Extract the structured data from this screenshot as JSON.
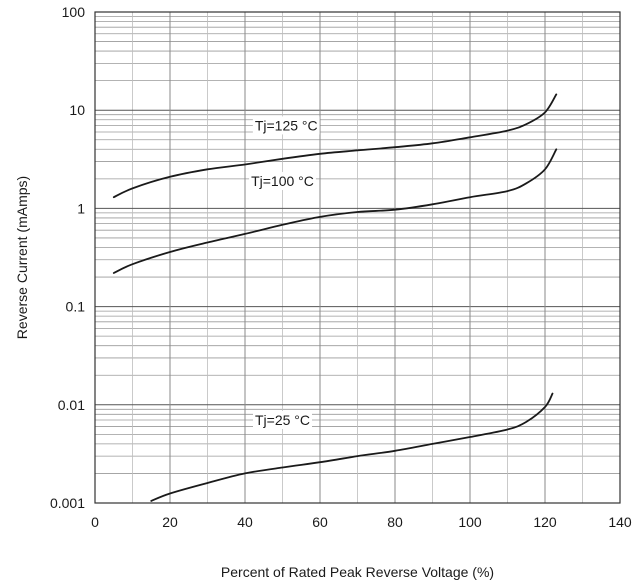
{
  "chart_data": {
    "type": "line",
    "title": "",
    "xlabel": "Percent of Rated Peak Reverse Voltage (%)",
    "ylabel": "Reverse Current (mAmps)",
    "xlim": [
      0,
      140
    ],
    "ylim": [
      0.001,
      100
    ],
    "y_scale": "log",
    "grid": true,
    "x_ticks": [
      "0",
      "20",
      "40",
      "60",
      "80",
      "100",
      "120",
      "140"
    ],
    "y_ticks": [
      "0.001",
      "0.01",
      "0.1",
      "1",
      "10",
      "100"
    ],
    "legend": "none",
    "series": [
      {
        "name": "Tj=125 °C",
        "x": [
          5,
          10,
          20,
          30,
          40,
          50,
          60,
          70,
          80,
          90,
          100,
          110,
          115,
          120,
          123
        ],
        "y": [
          1.3,
          1.6,
          2.1,
          2.5,
          2.8,
          3.2,
          3.6,
          3.9,
          4.2,
          4.6,
          5.3,
          6.2,
          7.2,
          9.5,
          14.5
        ]
      },
      {
        "name": "Tj=100 °C",
        "x": [
          5,
          10,
          20,
          30,
          40,
          50,
          60,
          70,
          80,
          90,
          100,
          110,
          115,
          120,
          123
        ],
        "y": [
          0.22,
          0.27,
          0.36,
          0.45,
          0.55,
          0.68,
          0.82,
          0.92,
          0.97,
          1.1,
          1.3,
          1.5,
          1.8,
          2.5,
          4.0
        ]
      },
      {
        "name": "Tj=25 °C",
        "x": [
          15,
          20,
          30,
          40,
          50,
          60,
          70,
          80,
          90,
          100,
          110,
          115,
          120,
          122
        ],
        "y": [
          0.00105,
          0.00125,
          0.0016,
          0.002,
          0.0023,
          0.0026,
          0.003,
          0.0034,
          0.004,
          0.0047,
          0.0056,
          0.0067,
          0.0095,
          0.013
        ]
      }
    ],
    "annotations": [
      {
        "text": "Tj=125 °C",
        "x": 51,
        "y": 7.0
      },
      {
        "text": "Tj=100 °C",
        "x": 50,
        "y": 1.9
      },
      {
        "text": "Tj=25 °C",
        "x": 50,
        "y": 0.007
      }
    ]
  }
}
